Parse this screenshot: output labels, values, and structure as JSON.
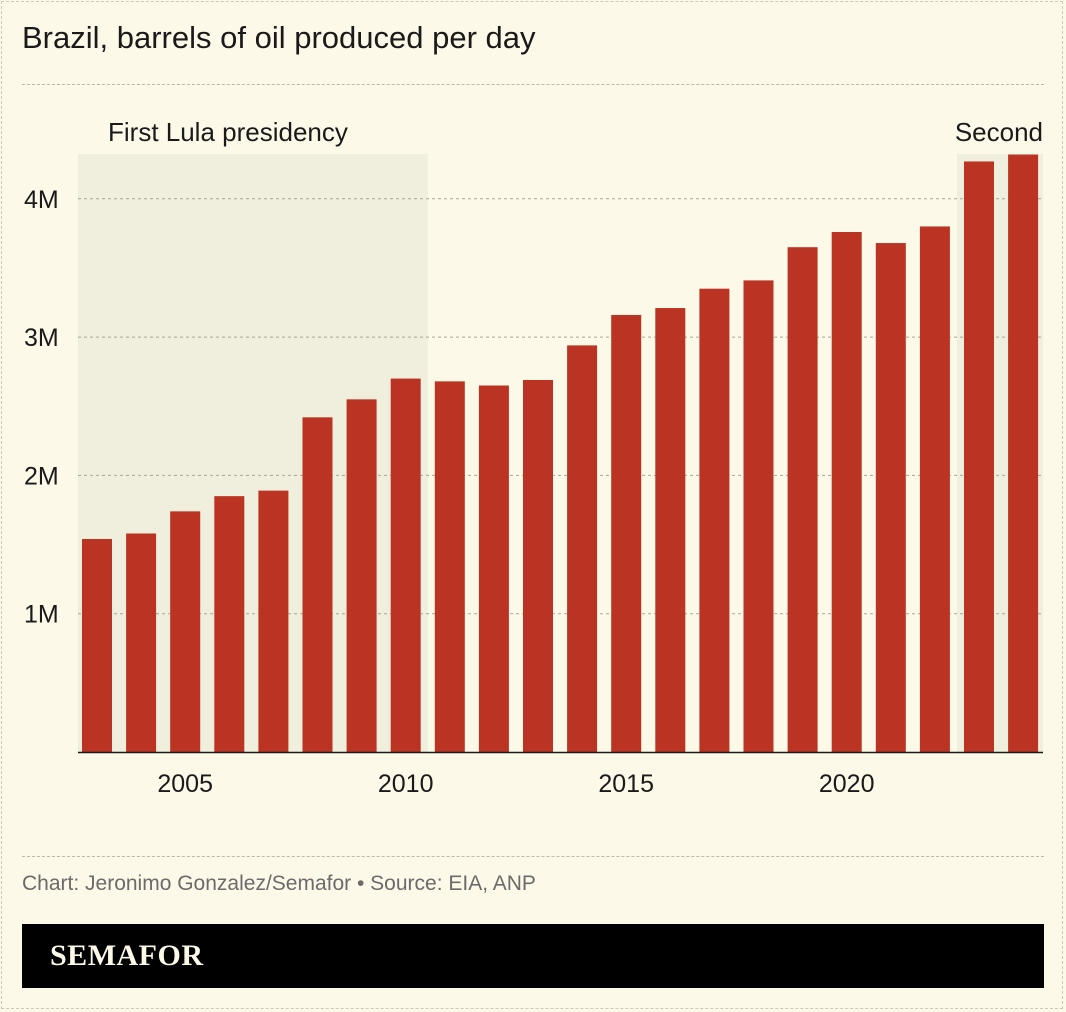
{
  "title": "Brazil, barrels of oil produced per day",
  "credit": "Chart: Jeronimo Gonzalez/Semafor • Source: EIA, ANP",
  "logo": "SEMAFOR",
  "colors": {
    "bar": "#bb3322",
    "shade": "#f0eedc",
    "background": "#fcf9e8"
  },
  "chart_data": {
    "type": "bar",
    "title": "Brazil, barrels of oil produced per day",
    "categories": [
      2003,
      2004,
      2005,
      2006,
      2007,
      2008,
      2009,
      2010,
      2011,
      2012,
      2013,
      2014,
      2015,
      2016,
      2017,
      2018,
      2019,
      2020,
      2021,
      2022,
      2023,
      2024
    ],
    "values": [
      1.54,
      1.58,
      1.74,
      1.85,
      1.89,
      2.42,
      2.55,
      2.7,
      2.68,
      2.65,
      2.69,
      2.94,
      3.16,
      3.21,
      3.35,
      3.41,
      3.65,
      3.76,
      3.68,
      3.8,
      4.27,
      4.32
    ],
    "unit": "million barrels per day",
    "ylim": [
      0,
      4.4
    ],
    "yticks": [
      {
        "value": 1,
        "label": "1M"
      },
      {
        "value": 2,
        "label": "2M"
      },
      {
        "value": 3,
        "label": "3M"
      },
      {
        "value": 4,
        "label": "4M"
      }
    ],
    "xticks": [
      {
        "value": 2005,
        "label": "2005"
      },
      {
        "value": 2010,
        "label": "2010"
      },
      {
        "value": 2015,
        "label": "2015"
      },
      {
        "value": 2020,
        "label": "2020"
      }
    ],
    "grid": true,
    "annotations": [
      {
        "label": "First Lula presidency",
        "from": 2003,
        "to": 2010
      },
      {
        "label": "Second",
        "from": 2023,
        "to": 2024
      }
    ]
  }
}
